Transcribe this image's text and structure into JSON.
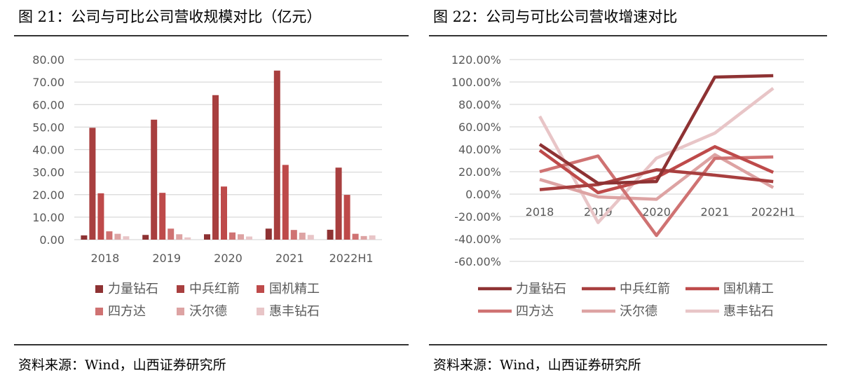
{
  "left": {
    "title": "图 21：公司与可比公司营收规模对比（亿元）",
    "source": "资料来源：Wind，山西证券研究所"
  },
  "right": {
    "title": "图 22：公司与可比公司营收增速对比",
    "source": "资料来源：Wind，山西证券研究所"
  },
  "chart_data": [
    {
      "type": "bar",
      "title": "图 21：公司与可比公司营收规模对比（亿元）",
      "categories": [
        "2018",
        "2019",
        "2020",
        "2021",
        "2022H1"
      ],
      "ylim": [
        0,
        80
      ],
      "yticks": [
        "0.00",
        "10.00",
        "20.00",
        "30.00",
        "40.00",
        "50.00",
        "60.00",
        "70.00",
        "80.00"
      ],
      "grid": true,
      "legend_position": "bottom",
      "series": [
        {
          "name": "力量钻石",
          "color": "#8E3233",
          "values": [
            1.9,
            2.1,
            2.4,
            4.9,
            4.4
          ]
        },
        {
          "name": "中兵红箭",
          "color": "#A83F3F",
          "values": [
            49.7,
            53.3,
            64.2,
            75.1,
            32.0
          ]
        },
        {
          "name": "国机精工",
          "color": "#BE4A4A",
          "values": [
            20.6,
            20.8,
            23.6,
            33.2,
            19.9
          ]
        },
        {
          "name": "四方达",
          "color": "#CF7272",
          "values": [
            3.7,
            4.9,
            3.2,
            4.3,
            2.6
          ]
        },
        {
          "name": "沃尔德",
          "color": "#DDA3A3",
          "values": [
            2.6,
            2.4,
            2.4,
            3.1,
            1.6
          ]
        },
        {
          "name": "惠丰钻石",
          "color": "#E8C5C7",
          "values": [
            1.5,
            1.0,
            1.4,
            2.1,
            1.9
          ]
        }
      ]
    },
    {
      "type": "line",
      "title": "图 22：公司与可比公司营收增速对比",
      "categories": [
        "2018",
        "2019",
        "2020",
        "2021",
        "2022H1"
      ],
      "ylim": [
        -60,
        120
      ],
      "yticks": [
        "-60.00%",
        "-40.00%",
        "-20.00%",
        "0.00%",
        "20.00%",
        "40.00%",
        "60.00%",
        "80.00%",
        "100.00%",
        "120.00%"
      ],
      "grid": true,
      "legend_position": "bottom",
      "series": [
        {
          "name": "力量钻石",
          "color": "#8E3233",
          "values": [
            44.4,
            9.6,
            11.2,
            104.4,
            105.6
          ]
        },
        {
          "name": "中兵红箭",
          "color": "#A83F3F",
          "values": [
            4.0,
            8.5,
            21.7,
            16.9,
            11.2
          ]
        },
        {
          "name": "国机精工",
          "color": "#BE4A4A",
          "values": [
            39.0,
            1.3,
            14.8,
            42.3,
            19.4
          ]
        },
        {
          "name": "四方达",
          "color": "#CF7272",
          "values": [
            20.0,
            34.0,
            -36.9,
            31.9,
            33.1
          ]
        },
        {
          "name": "沃尔德",
          "color": "#DDA3A3",
          "values": [
            13.1,
            -2.5,
            -4.6,
            35.2,
            5.8
          ]
        },
        {
          "name": "惠丰钻石",
          "color": "#E8C5C7",
          "values": [
            69.4,
            -25.4,
            32.1,
            54.4,
            94.4
          ]
        }
      ]
    }
  ]
}
